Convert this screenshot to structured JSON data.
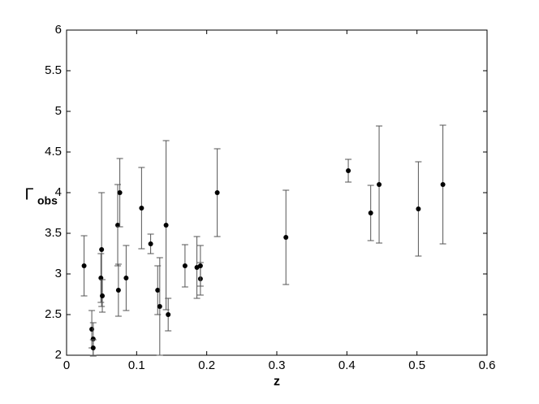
{
  "chart_data": {
    "type": "scatter",
    "xlabel": "z",
    "ylabel": "Γ",
    "ylabel_subscript": "obs",
    "x": [
      0.025,
      0.036,
      0.038,
      0.038,
      0.05,
      0.049,
      0.051,
      0.073,
      0.076,
      0.074,
      0.085,
      0.107,
      0.12,
      0.13,
      0.133,
      0.142,
      0.145,
      0.169,
      0.186,
      0.191,
      0.191,
      0.215,
      0.313,
      0.402,
      0.434,
      0.446,
      0.502,
      0.537
    ],
    "values": [
      3.1,
      2.32,
      2.2,
      2.09,
      3.3,
      2.95,
      2.73,
      3.6,
      4.0,
      2.8,
      2.95,
      3.81,
      3.37,
      2.8,
      2.6,
      3.6,
      2.5,
      3.1,
      3.08,
      2.94,
      3.1,
      4.0,
      3.45,
      4.27,
      3.75,
      4.1,
      3.8,
      4.1
    ],
    "yerr": [
      0.37,
      0.23,
      0.2,
      0.1,
      0.7,
      0.3,
      0.2,
      0.5,
      0.42,
      0.32,
      0.4,
      0.5,
      0.12,
      0.3,
      0.6,
      1.04,
      0.2,
      0.26,
      0.38,
      0.2,
      0.25,
      0.54,
      0.58,
      0.14,
      0.34,
      0.72,
      0.58,
      0.73
    ],
    "color": "#000000",
    "xlim": [
      0,
      0.6
    ],
    "xticks": [
      0,
      0.1,
      0.2,
      0.3,
      0.4,
      0.5,
      0.6
    ],
    "ylim": [
      2,
      6
    ],
    "yticks": [
      2,
      2.5,
      3,
      3.5,
      4,
      4.5,
      5,
      5.5,
      6
    ]
  }
}
